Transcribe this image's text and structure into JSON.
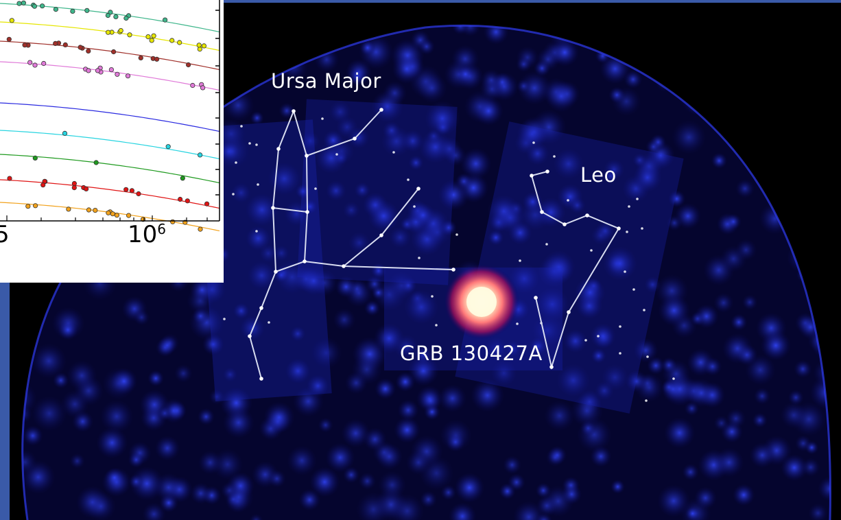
{
  "labels": {
    "ursa_major": "Ursa Major",
    "leo": "Leo",
    "grb": "GRB 130427A"
  },
  "inset": {
    "tick_left": "5",
    "tick_right_base": "10",
    "tick_right_exp": "6"
  },
  "colors": {
    "background": "#000000",
    "sky_blue": "#1a2bd6",
    "frame_blue": "#3a5aa8",
    "constellation_lines": "#d8dcf0",
    "burst_core": "#fff6c8",
    "burst_halo": "#e01e3a",
    "curve_colors": [
      "#3fb68b",
      "#e6e600",
      "#a0302a",
      "#e07ad8",
      "#2a2ae0",
      "#27d4e0",
      "#1f9a1f",
      "#e01414",
      "#f2a21c"
    ]
  }
}
